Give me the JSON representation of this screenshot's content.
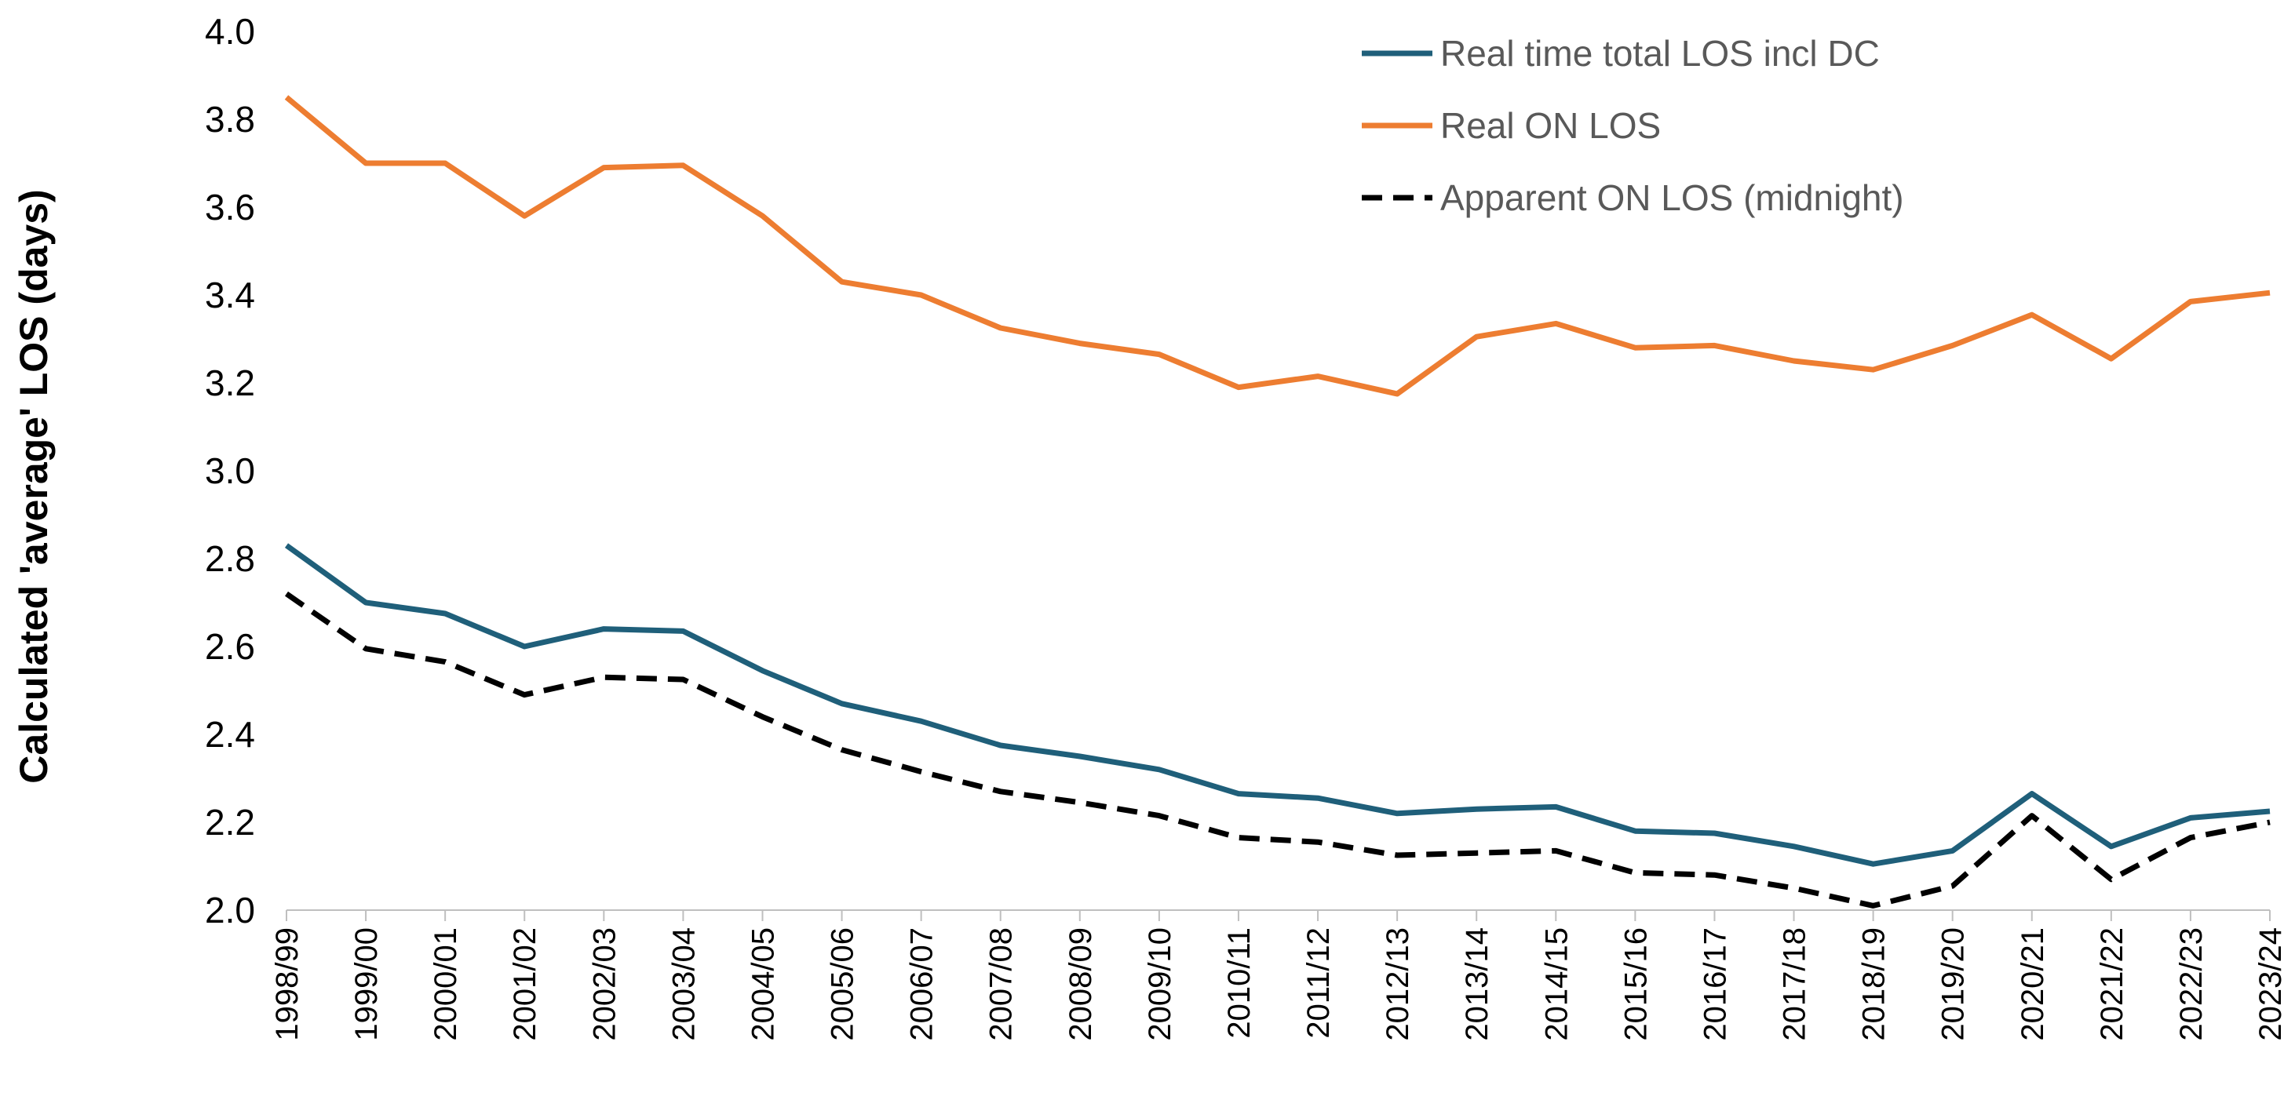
{
  "chart_data": {
    "type": "line",
    "title": "",
    "xlabel": "",
    "ylabel": "Calculated 'average' LOS (days)",
    "ylim": [
      2.0,
      4.0
    ],
    "yticks": [
      "2.0",
      "2.2",
      "2.4",
      "2.6",
      "2.8",
      "3.0",
      "3.2",
      "3.4",
      "3.6",
      "3.8",
      "4.0"
    ],
    "grid": false,
    "legend_position": "top-right",
    "categories": [
      "1998/99",
      "1999/00",
      "2000/01",
      "2001/02",
      "2002/03",
      "2003/04",
      "2004/05",
      "2005/06",
      "2006/07",
      "2007/08",
      "2008/09",
      "2009/10",
      "2010/11",
      "2011/12",
      "2012/13",
      "2013/14",
      "2014/15",
      "2015/16",
      "2016/17",
      "2017/18",
      "2018/19",
      "2019/20",
      "2020/21",
      "2021/22",
      "2022/23",
      "2023/24"
    ],
    "series": [
      {
        "name": "Real time total  LOS incl DC",
        "color": "#1f5f7a",
        "dash": "solid",
        "values": [
          2.83,
          2.7,
          2.675,
          2.6,
          2.64,
          2.635,
          2.545,
          2.47,
          2.43,
          2.375,
          2.35,
          2.32,
          2.265,
          2.255,
          2.22,
          2.23,
          2.235,
          2.18,
          2.175,
          2.145,
          2.105,
          2.135,
          2.265,
          2.145,
          2.21,
          2.225
        ]
      },
      {
        "name": "Real ON LOS",
        "color": "#ed7d31",
        "dash": "solid",
        "values": [
          3.85,
          3.7,
          3.7,
          3.58,
          3.69,
          3.695,
          3.58,
          3.43,
          3.4,
          3.325,
          3.29,
          3.265,
          3.19,
          3.215,
          3.175,
          3.305,
          3.335,
          3.28,
          3.285,
          3.25,
          3.23,
          3.285,
          3.355,
          3.255,
          3.385,
          3.405
        ]
      },
      {
        "name": "Apparent ON LOS (midnight)",
        "color": "#000000",
        "dash": "dashed",
        "values": [
          2.72,
          2.595,
          2.565,
          2.49,
          2.53,
          2.525,
          2.44,
          2.365,
          2.315,
          2.27,
          2.245,
          2.215,
          2.165,
          2.155,
          2.125,
          2.13,
          2.135,
          2.085,
          2.08,
          2.05,
          2.01,
          2.055,
          2.215,
          2.07,
          2.165,
          2.2
        ]
      }
    ]
  }
}
